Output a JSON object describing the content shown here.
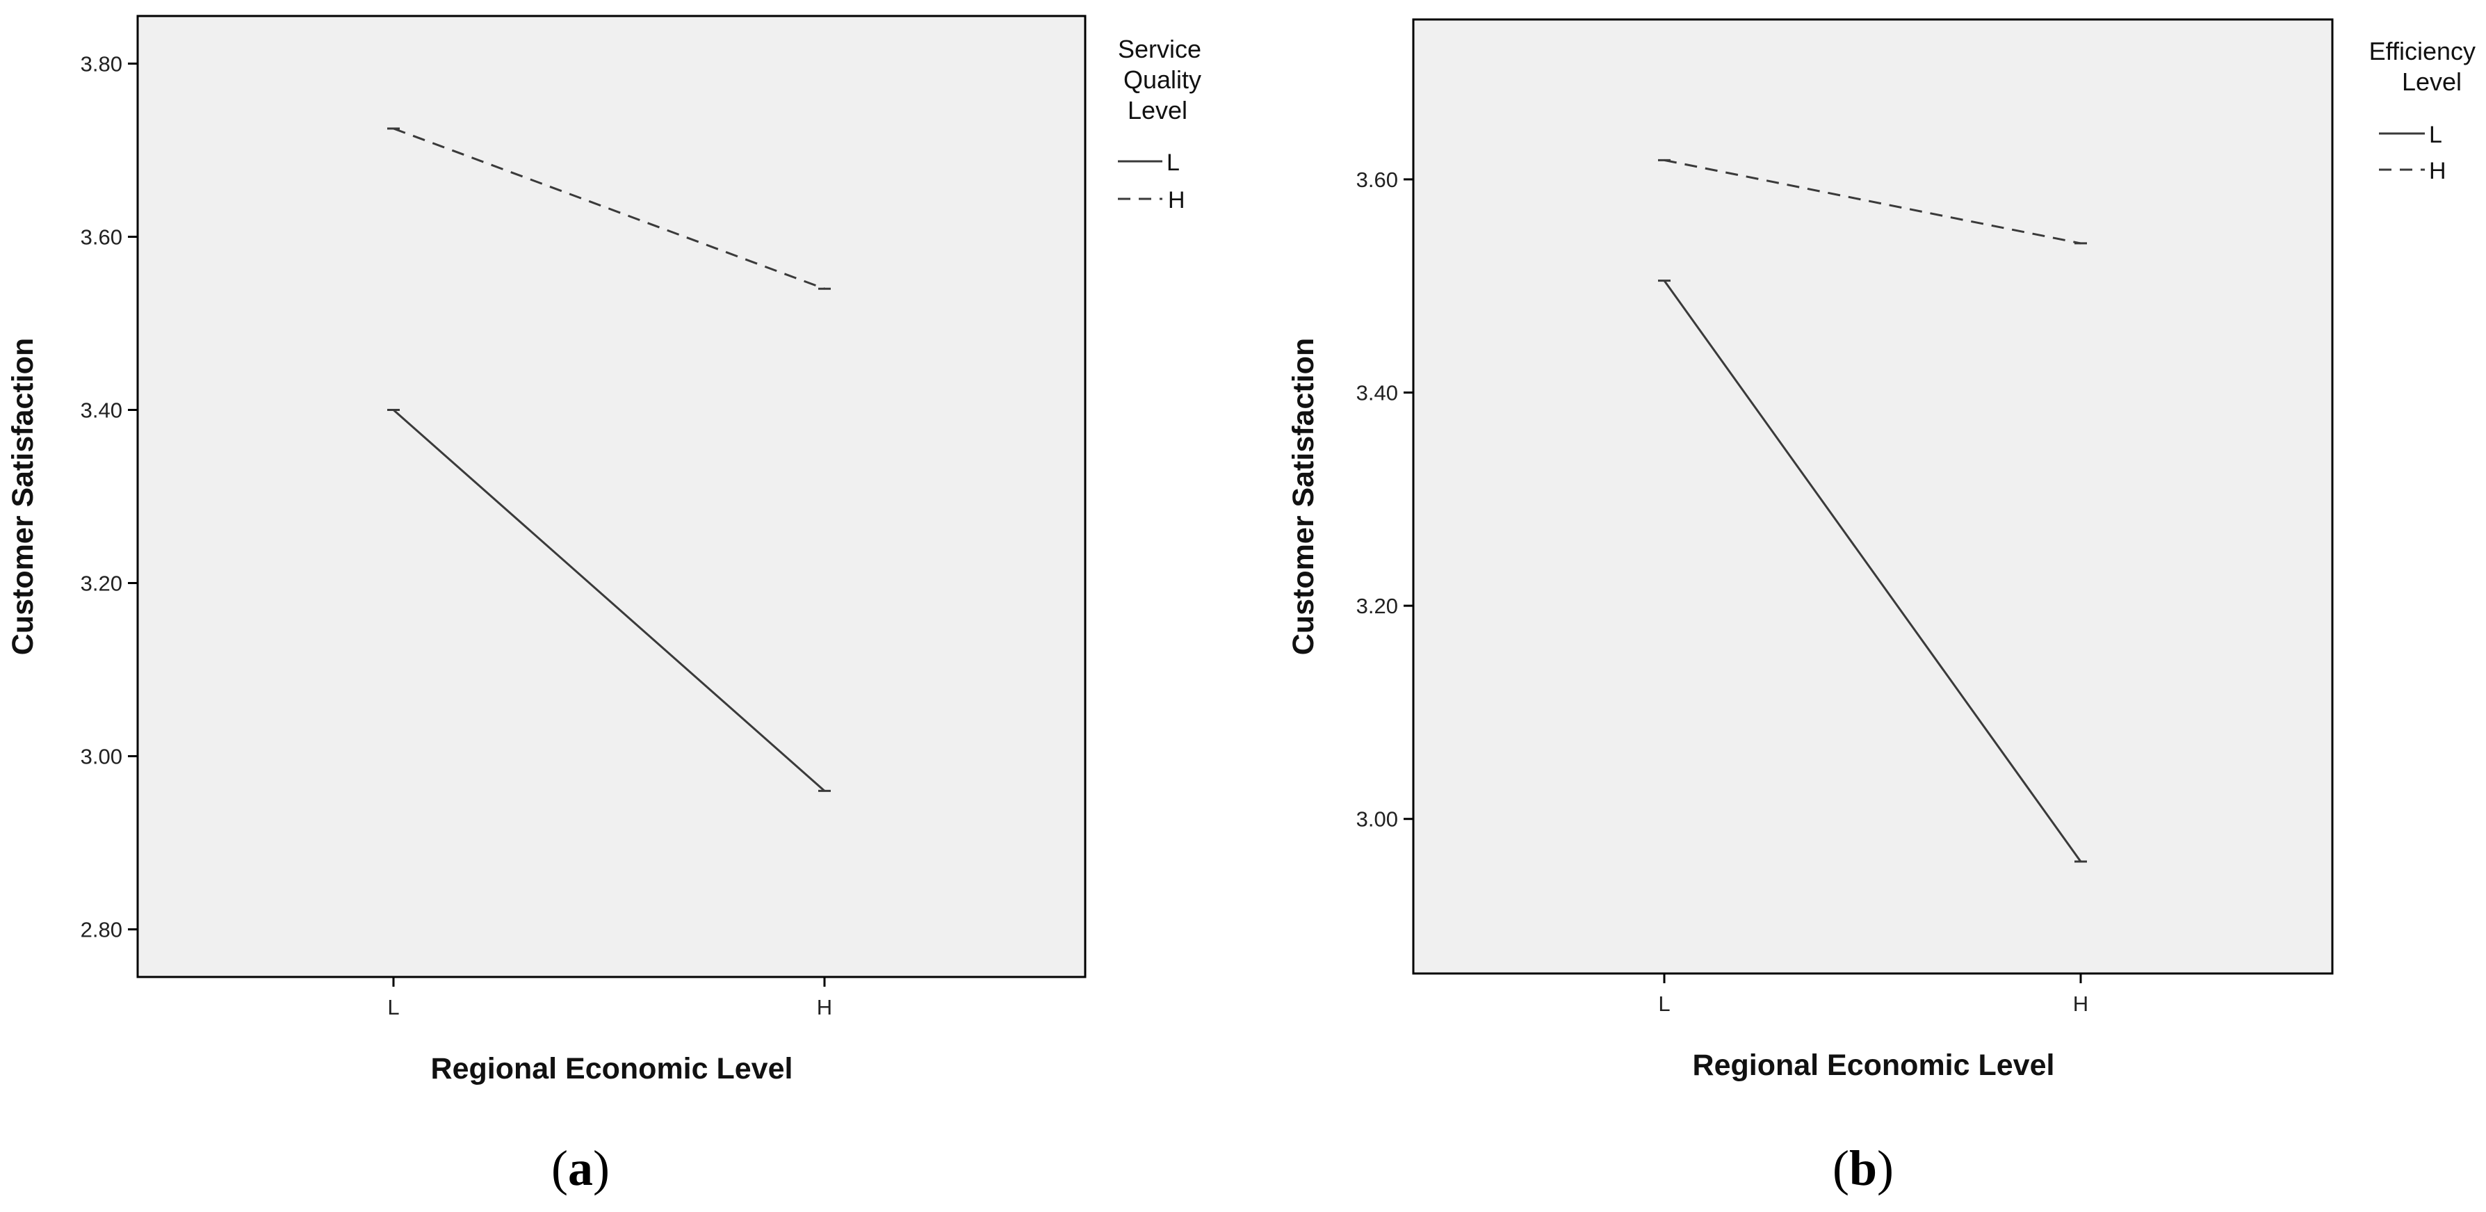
{
  "chart_data": [
    {
      "type": "line",
      "panel_label": "a",
      "xlabel": "Regional Economic Level",
      "ylabel": "Customer Satisfaction",
      "categories": [
        "L",
        "H"
      ],
      "ylim": [
        2.745,
        3.855
      ],
      "yticks": [
        "2.80",
        "3.00",
        "3.20",
        "3.40",
        "3.60",
        "3.80"
      ],
      "legend_title": [
        "Service",
        "Quality",
        "Level"
      ],
      "legend_position": "top-right outside",
      "grid": false,
      "series": [
        {
          "name": "L",
          "style": "solid",
          "values": [
            3.4,
            2.96
          ]
        },
        {
          "name": "H",
          "style": "dashed",
          "values": [
            3.725,
            3.54
          ]
        }
      ],
      "colors": {
        "plot_background": "#f0f0f0",
        "line": "#3a3a3a",
        "axis": "#000000"
      }
    },
    {
      "type": "line",
      "panel_label": "b",
      "xlabel": "Regional Economic Level",
      "ylabel": "Customer Satisfaction",
      "categories": [
        "L",
        "H"
      ],
      "ylim": [
        2.855,
        3.75
      ],
      "yticks": [
        "3.00",
        "3.20",
        "3.40",
        "3.60"
      ],
      "legend_title": [
        "Efficiency",
        "Level"
      ],
      "legend_position": "top-right outside",
      "grid": false,
      "series": [
        {
          "name": "L",
          "style": "solid",
          "values": [
            3.505,
            2.96
          ]
        },
        {
          "name": "H",
          "style": "dashed",
          "values": [
            3.618,
            3.54
          ]
        }
      ],
      "colors": {
        "plot_background": "#f0f0f0",
        "line": "#3a3a3a",
        "axis": "#000000"
      }
    }
  ]
}
